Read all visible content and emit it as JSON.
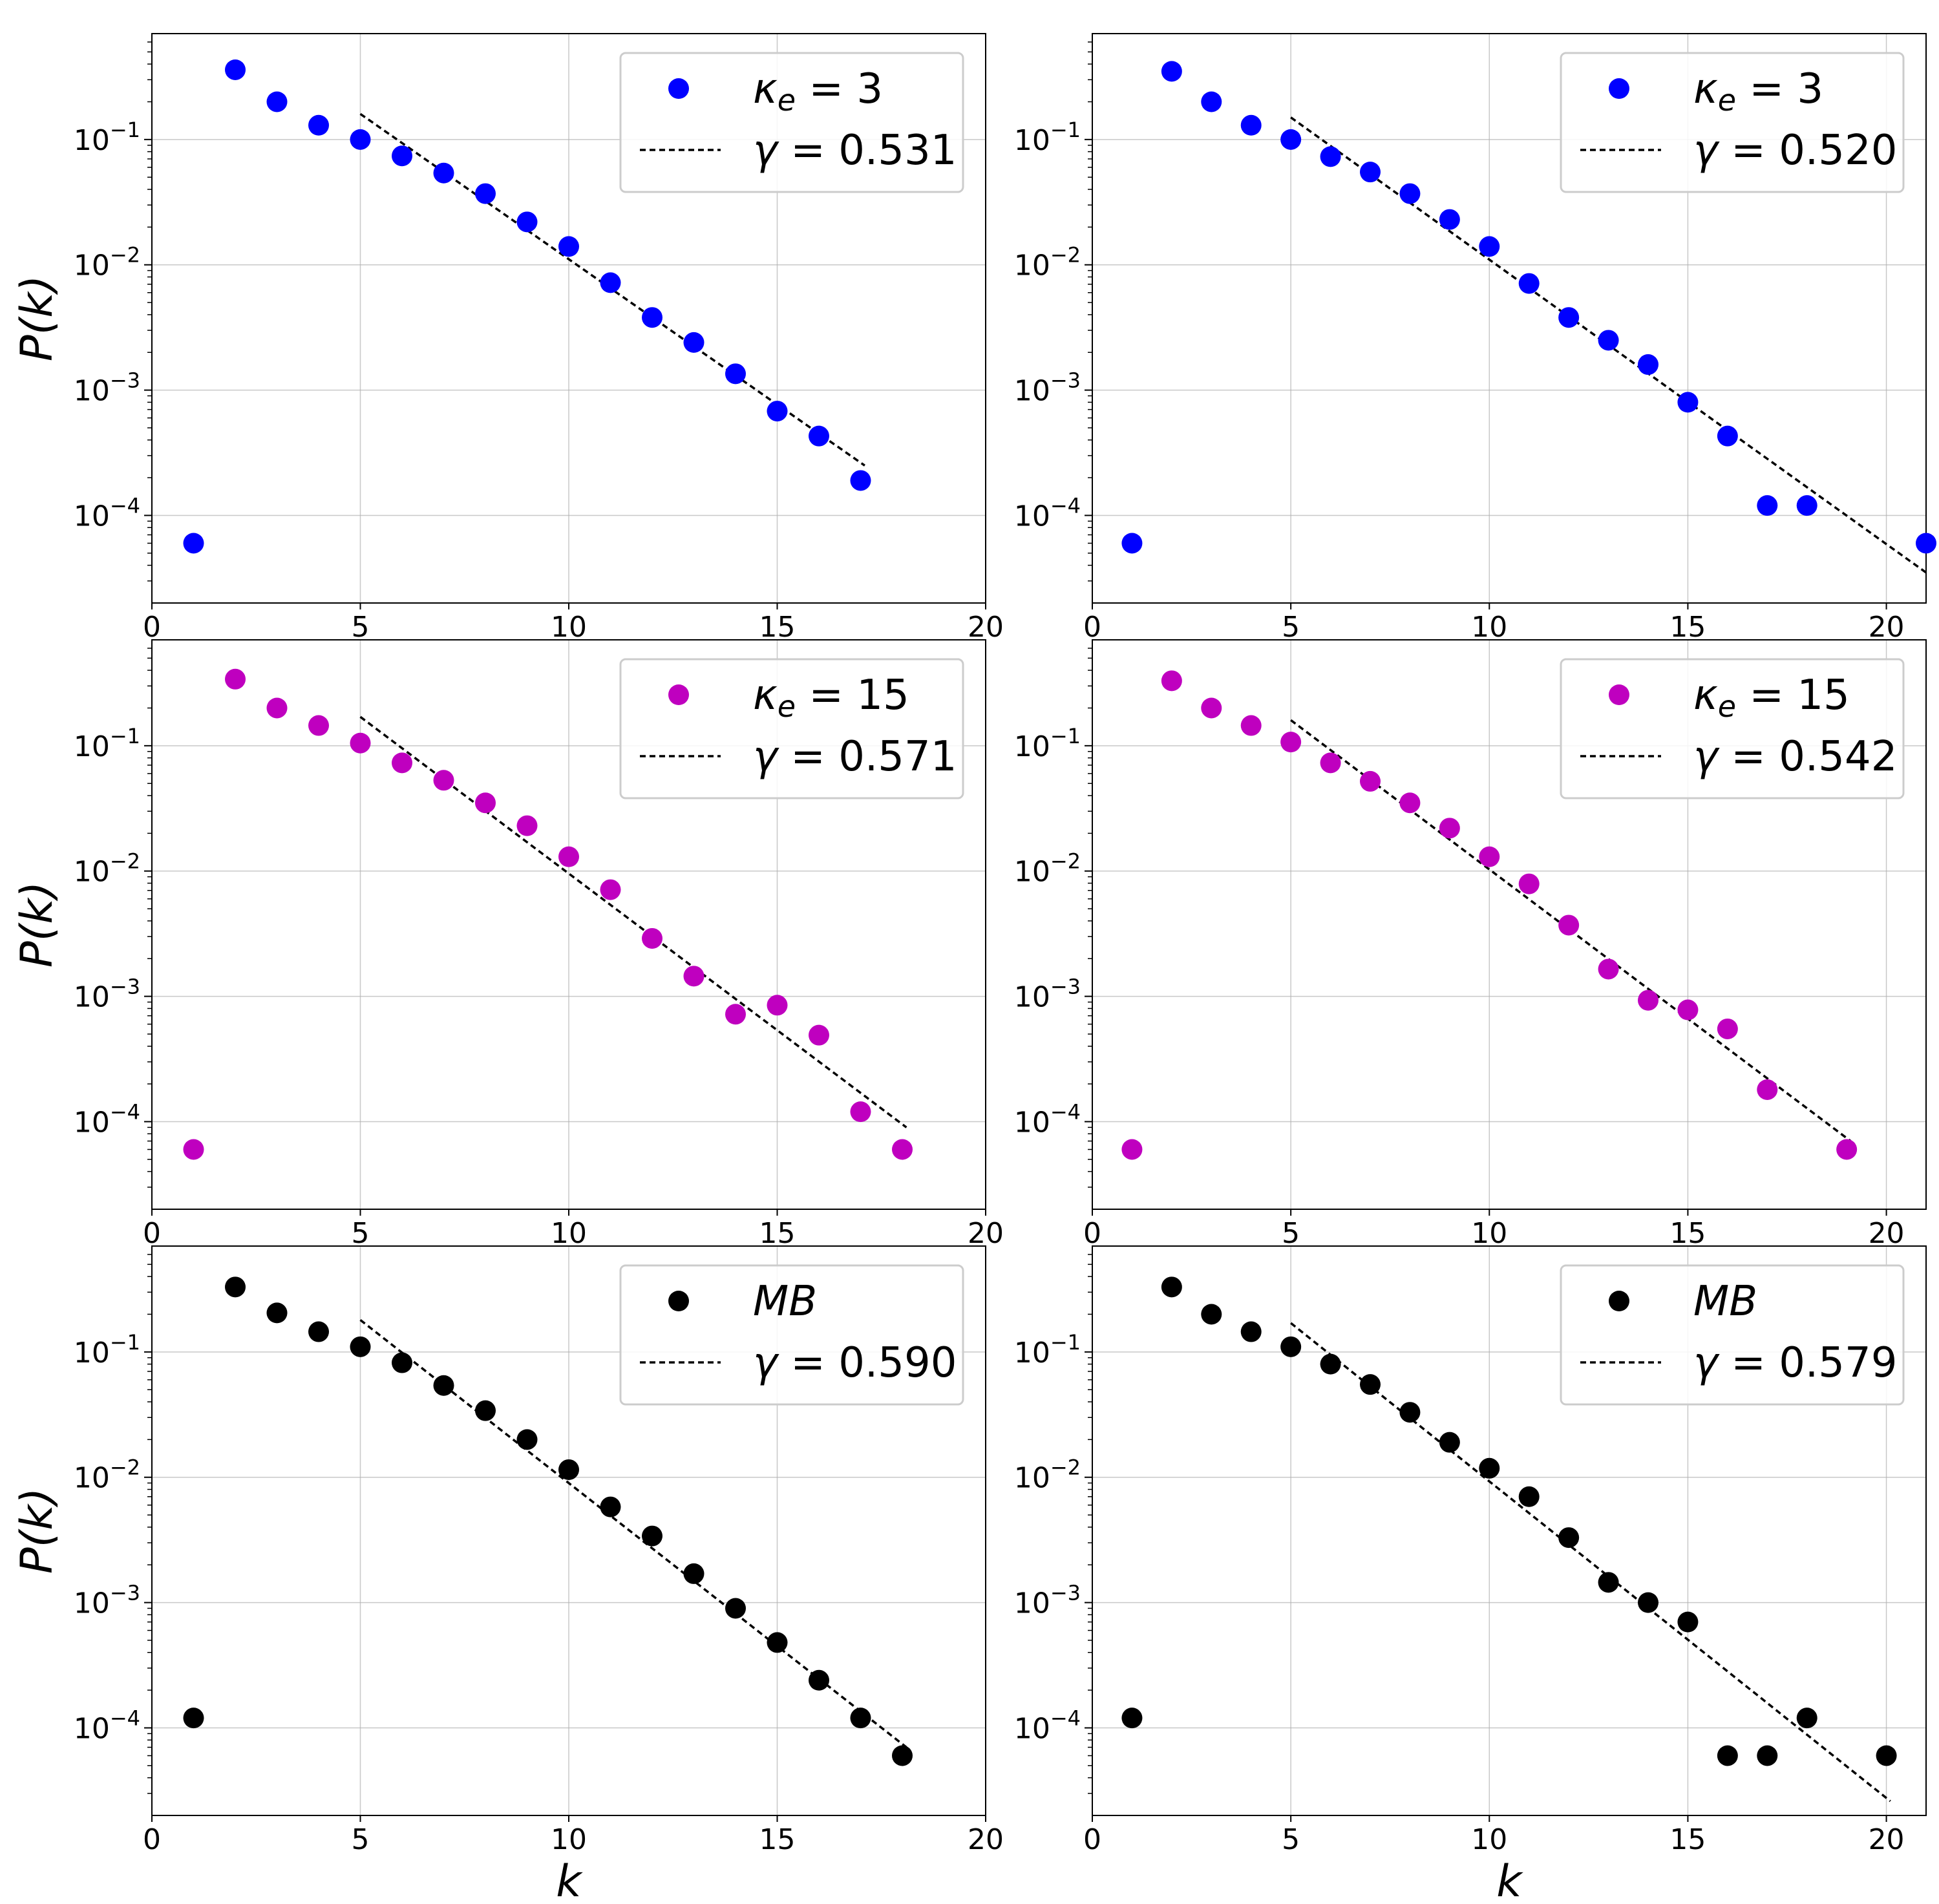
{
  "chart_data": [
    {
      "type": "scatter",
      "panel": "row1-left",
      "xlim": [
        0,
        20
      ],
      "xticks": [
        0,
        5,
        10,
        15,
        20
      ],
      "yscale": "log",
      "ylim": [
        2e-05,
        0.7
      ],
      "ytick_labels": [
        "10^-1",
        "10^-2",
        "10^-3",
        "10^-4"
      ],
      "ylabel": "P(k)",
      "xlabel": "",
      "grid": true,
      "legend_placement": "top-right",
      "color": "#0000ff",
      "legend_marker_label": "κ_e = 3",
      "legend_line_label": "γ = 0.531",
      "gamma": 0.531,
      "fit_x": [
        5,
        17.1
      ],
      "fit_y": [
        0.16,
        0.00025
      ],
      "x": [
        1,
        2,
        3,
        4,
        5,
        6,
        7,
        8,
        9,
        10,
        11,
        12,
        13,
        14,
        15,
        16,
        17
      ],
      "y": [
        6e-05,
        0.36,
        0.2,
        0.13,
        0.1,
        0.074,
        0.054,
        0.037,
        0.022,
        0.014,
        0.0072,
        0.0038,
        0.0024,
        0.00135,
        0.00068,
        0.00043,
        0.00019
      ]
    },
    {
      "type": "scatter",
      "panel": "row1-right",
      "xlim": [
        0,
        21
      ],
      "xticks": [
        0,
        5,
        10,
        15,
        20
      ],
      "yscale": "log",
      "ylim": [
        2e-05,
        0.7
      ],
      "ytick_labels": [
        "10^-1",
        "10^-2",
        "10^-3",
        "10^-4"
      ],
      "ylabel": "",
      "xlabel": "",
      "grid": true,
      "legend_placement": "top-right",
      "color": "#0000ff",
      "legend_marker_label": "κ_e = 3",
      "legend_line_label": "γ = 0.520",
      "gamma": 0.52,
      "fit_x": [
        5,
        21
      ],
      "fit_y": [
        0.15,
        3.5e-05
      ],
      "x": [
        1,
        2,
        3,
        4,
        5,
        6,
        7,
        8,
        9,
        10,
        11,
        12,
        13,
        14,
        15,
        16,
        17,
        18,
        21
      ],
      "y": [
        6e-05,
        0.35,
        0.2,
        0.13,
        0.1,
        0.073,
        0.055,
        0.037,
        0.023,
        0.014,
        0.0071,
        0.0038,
        0.0025,
        0.0016,
        0.0008,
        0.00043,
        0.00012,
        0.00012,
        6e-05
      ]
    },
    {
      "type": "scatter",
      "panel": "row2-left",
      "xlim": [
        0,
        20
      ],
      "xticks": [
        0,
        5,
        10,
        15,
        20
      ],
      "yscale": "log",
      "ylim": [
        2e-05,
        0.7
      ],
      "ytick_labels": [
        "10^-1",
        "10^-2",
        "10^-3",
        "10^-4"
      ],
      "ylabel": "P(k)",
      "xlabel": "",
      "grid": true,
      "legend_placement": "top-right",
      "color": "#bf00bf",
      "legend_marker_label": "κ_e = 15",
      "legend_line_label": "γ = 0.571",
      "gamma": 0.571,
      "fit_x": [
        5,
        18.1
      ],
      "fit_y": [
        0.17,
        9e-05
      ],
      "x": [
        1,
        2,
        3,
        4,
        5,
        6,
        7,
        8,
        9,
        10,
        11,
        12,
        13,
        14,
        15,
        16,
        17,
        18
      ],
      "y": [
        6e-05,
        0.34,
        0.2,
        0.145,
        0.105,
        0.073,
        0.053,
        0.035,
        0.023,
        0.013,
        0.0071,
        0.0029,
        0.00145,
        0.00072,
        0.00085,
        0.00049,
        0.00012,
        6e-05
      ]
    },
    {
      "type": "scatter",
      "panel": "row2-right",
      "xlim": [
        0,
        21
      ],
      "xticks": [
        0,
        5,
        10,
        15,
        20
      ],
      "yscale": "log",
      "ylim": [
        2e-05,
        0.7
      ],
      "ytick_labels": [
        "10^-1",
        "10^-2",
        "10^-3",
        "10^-4"
      ],
      "ylabel": "",
      "xlabel": "",
      "grid": true,
      "legend_placement": "top-right",
      "color": "#bf00bf",
      "legend_marker_label": "κ_e = 15",
      "legend_line_label": "γ = 0.542",
      "gamma": 0.542,
      "fit_x": [
        5,
        19.1
      ],
      "fit_y": [
        0.16,
        7e-05
      ],
      "x": [
        1,
        2,
        3,
        4,
        5,
        6,
        7,
        8,
        9,
        10,
        11,
        12,
        13,
        14,
        15,
        16,
        17,
        19
      ],
      "y": [
        6e-05,
        0.33,
        0.2,
        0.145,
        0.107,
        0.073,
        0.052,
        0.035,
        0.022,
        0.013,
        0.0079,
        0.0037,
        0.00165,
        0.00093,
        0.00078,
        0.00055,
        0.00018,
        6e-05
      ]
    },
    {
      "type": "scatter",
      "panel": "row3-left",
      "xlim": [
        0,
        20
      ],
      "xticks": [
        0,
        5,
        10,
        15,
        20
      ],
      "xtick_labels": [
        "0",
        "5",
        "10",
        "15",
        "20"
      ],
      "yscale": "log",
      "ylim": [
        2e-05,
        0.7
      ],
      "ytick_labels": [
        "10^-1",
        "10^-2",
        "10^-3",
        "10^-4"
      ],
      "ylabel": "P(k)",
      "xlabel": "k",
      "grid": true,
      "legend_placement": "top-right",
      "color": "#000000",
      "legend_marker_label": "MB",
      "legend_line_label": "γ = 0.590",
      "gamma": 0.59,
      "fit_x": [
        5,
        18.1
      ],
      "fit_y": [
        0.18,
        7e-05
      ],
      "x": [
        1,
        2,
        3,
        4,
        5,
        6,
        7,
        8,
        9,
        10,
        11,
        12,
        13,
        14,
        15,
        16,
        17,
        18
      ],
      "y": [
        0.00012,
        0.33,
        0.205,
        0.145,
        0.11,
        0.082,
        0.054,
        0.034,
        0.02,
        0.0115,
        0.0058,
        0.0034,
        0.0017,
        0.0009,
        0.00048,
        0.00024,
        0.00012,
        6e-05
      ]
    },
    {
      "type": "scatter",
      "panel": "row3-right",
      "xlim": [
        0,
        21
      ],
      "xticks": [
        0,
        5,
        10,
        15,
        20
      ],
      "yscale": "log",
      "ylim": [
        2e-05,
        0.7
      ],
      "ytick_labels": [
        "10^-1",
        "10^-2",
        "10^-3",
        "10^-4"
      ],
      "ylabel": "",
      "xlabel": "k",
      "grid": true,
      "legend_placement": "top-right",
      "color": "#000000",
      "legend_marker_label": "MB",
      "legend_line_label": "γ = 0.579",
      "gamma": 0.579,
      "fit_x": [
        5,
        20.1
      ],
      "fit_y": [
        0.17,
        2.6e-05
      ],
      "x": [
        1,
        2,
        3,
        4,
        5,
        6,
        7,
        8,
        9,
        10,
        11,
        12,
        13,
        14,
        15,
        16,
        17,
        18,
        20
      ],
      "y": [
        0.00012,
        0.33,
        0.2,
        0.145,
        0.11,
        0.08,
        0.055,
        0.033,
        0.019,
        0.0118,
        0.007,
        0.0033,
        0.00145,
        0.001,
        0.0007,
        6e-05,
        6e-05,
        0.00012,
        6e-05
      ]
    }
  ]
}
